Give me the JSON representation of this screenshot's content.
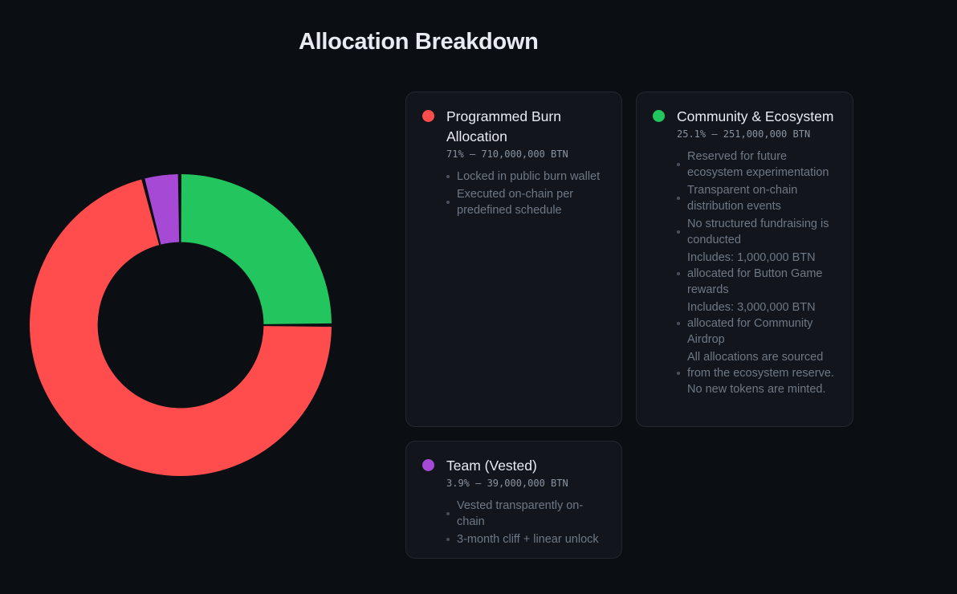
{
  "title": "Allocation Breakdown",
  "chart_data": {
    "type": "pie",
    "hole": 0.55,
    "categories": [
      "Programmed Burn Allocation",
      "Team (Vested)",
      "Community & Ecosystem"
    ],
    "values": [
      71,
      3.9,
      25.1
    ],
    "colors": [
      "#ff4d4d",
      "#a64ad6",
      "#22c55e"
    ]
  },
  "cards": [
    {
      "name": "Programmed Burn Allocation",
      "color": "#ff4d4d",
      "stat": "71% — 710,000,000 BTN",
      "bullets": [
        "Locked in public burn wallet",
        "Executed on-chain per predefined schedule"
      ]
    },
    {
      "name": "Community & Ecosystem",
      "color": "#22c55e",
      "stat": "25.1% — 251,000,000 BTN",
      "bullets": [
        "Reserved for future ecosystem experimentation",
        "Transparent on-chain distribution events",
        "No structured fundraising is conducted",
        "Includes: 1,000,000 BTN allocated for Button Game rewards",
        "Includes: 3,000,000 BTN allocated for Community Airdrop",
        "All allocations are sourced from the ecosystem reserve. No new tokens are minted."
      ]
    },
    {
      "name": "Team (Vested)",
      "color": "#a64ad6",
      "stat": "3.9% — 39,000,000 BTN",
      "bullets": [
        "Vested transparently on-chain",
        "3-month cliff + linear unlock"
      ]
    }
  ]
}
